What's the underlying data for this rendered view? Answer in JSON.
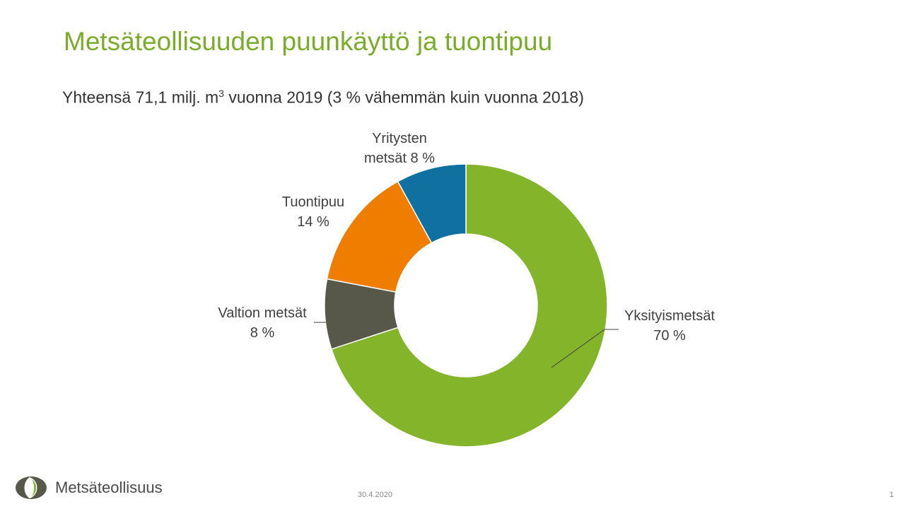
{
  "slide": {
    "title": "Metsäteollisuuden puunkäyttö ja tuontipuu",
    "subtitle_before_sup": "Yhteensä 71,1 milj. m",
    "subtitle_sup": "3",
    "subtitle_after_sup": " vuonna 2019 (3 % vähemmän kuin vuonna 2018)"
  },
  "chart_data": {
    "type": "pie",
    "style": "donut",
    "title": "",
    "slices": [
      {
        "name": "Yksityismetsät",
        "value": 70,
        "label_lines": [
          "Yksityismetsät",
          "70 %"
        ],
        "color": "#84b42a"
      },
      {
        "name": "Valtion metsät",
        "value": 8,
        "label_lines": [
          "Valtion metsät",
          "8 %"
        ],
        "color": "#58584a"
      },
      {
        "name": "Tuontipuu",
        "value": 14,
        "label_lines": [
          "Tuontipuu",
          "14 %"
        ],
        "color": "#ee7d00"
      },
      {
        "name": "Yritysten metsät",
        "value": 8,
        "label_lines": [
          "Yritysten",
          "metsät 8 %"
        ],
        "color": "#1070a0"
      }
    ],
    "unit": "%"
  },
  "footer": {
    "logo_icon": "leaf-logo-icon",
    "logo_text": "Metsäteollisuus",
    "date": "30.4.2020",
    "page_number": "1"
  }
}
